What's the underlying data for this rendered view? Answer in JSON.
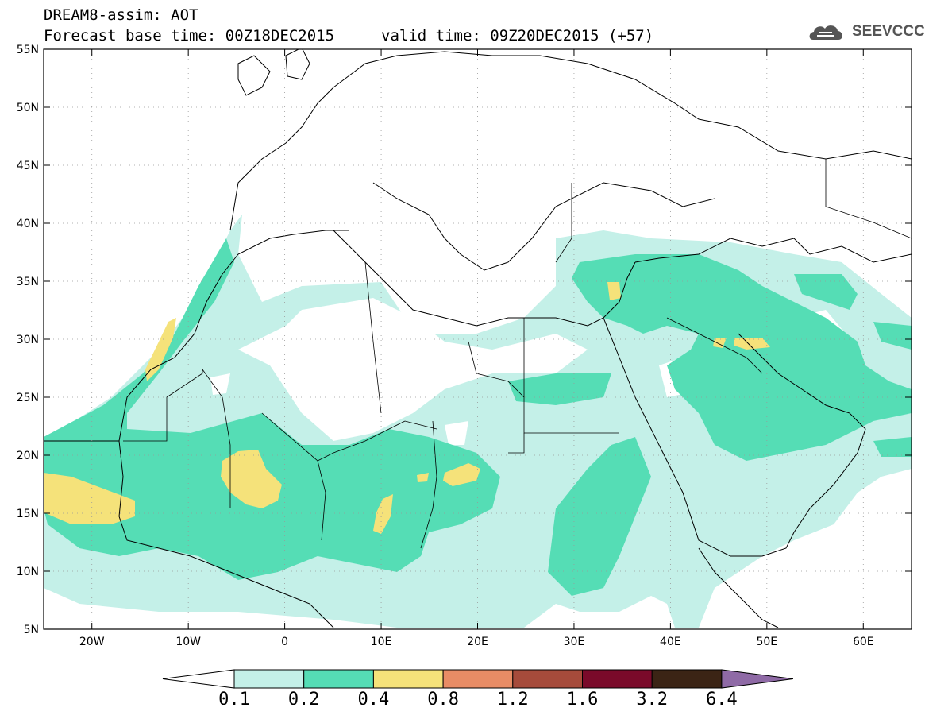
{
  "header": {
    "title_line1": "DREAM8-assim: AOT",
    "title_line2": "Forecast base time: 00Z18DEC2015",
    "valid_time": "valid time: 09Z20DEC2015 (+57)",
    "logo_text": "SEEVCCC",
    "logo_icon": "cloud-logo-icon"
  },
  "map": {
    "projection": "lat-lon",
    "lon_range": [
      -25,
      65
    ],
    "lat_range": [
      5,
      55
    ],
    "grid": "dotted",
    "lat_ticks": [
      "55N",
      "50N",
      "45N",
      "40N",
      "35N",
      "30N",
      "25N",
      "20N",
      "15N",
      "10N",
      "5N"
    ],
    "lon_ticks": [
      "20W",
      "10W",
      "0",
      "10E",
      "20E",
      "30E",
      "40E",
      "50E",
      "60E"
    ]
  },
  "colorbar": {
    "labels": [
      "0.1",
      "0.2",
      "0.4",
      "0.8",
      "1.2",
      "1.6",
      "3.2",
      "6.4"
    ],
    "colors": [
      "#ffffff",
      "#c4f0e8",
      "#55ddb5",
      "#f5e27a",
      "#e88c65",
      "#a64b3b",
      "#7a0a2a",
      "#3b2415",
      "#8f6aa6"
    ]
  }
}
